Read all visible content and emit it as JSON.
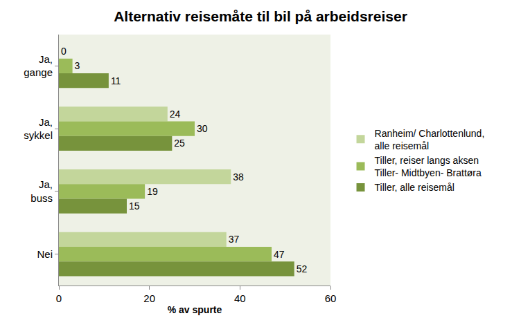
{
  "chart_data": {
    "type": "bar",
    "orientation": "horizontal",
    "title": "Alternativ reisemåte til bil på arbeidsreiser",
    "x_label": "% av spurte",
    "categories": [
      "Ja, gange",
      "Ja, sykkel",
      "Ja, buss",
      "Nei"
    ],
    "series": [
      {
        "name": "Ranheim/ Charlottenlund, alle reisemål",
        "color": "#c3d69b",
        "values": [
          0,
          24,
          38,
          37
        ]
      },
      {
        "name": "Tiller, reiser langs aksen Tiller- Midtbyen- Brattøra",
        "color": "#9bbb59",
        "values": [
          3,
          30,
          19,
          47
        ]
      },
      {
        "name": "Tiller, alle reisemål",
        "color": "#77933c",
        "values": [
          11,
          25,
          15,
          52
        ]
      }
    ],
    "xlim": [
      0,
      60
    ],
    "xticks": [
      0,
      20,
      40,
      60
    ],
    "grid": false,
    "data_labels": true,
    "legend": "right"
  }
}
